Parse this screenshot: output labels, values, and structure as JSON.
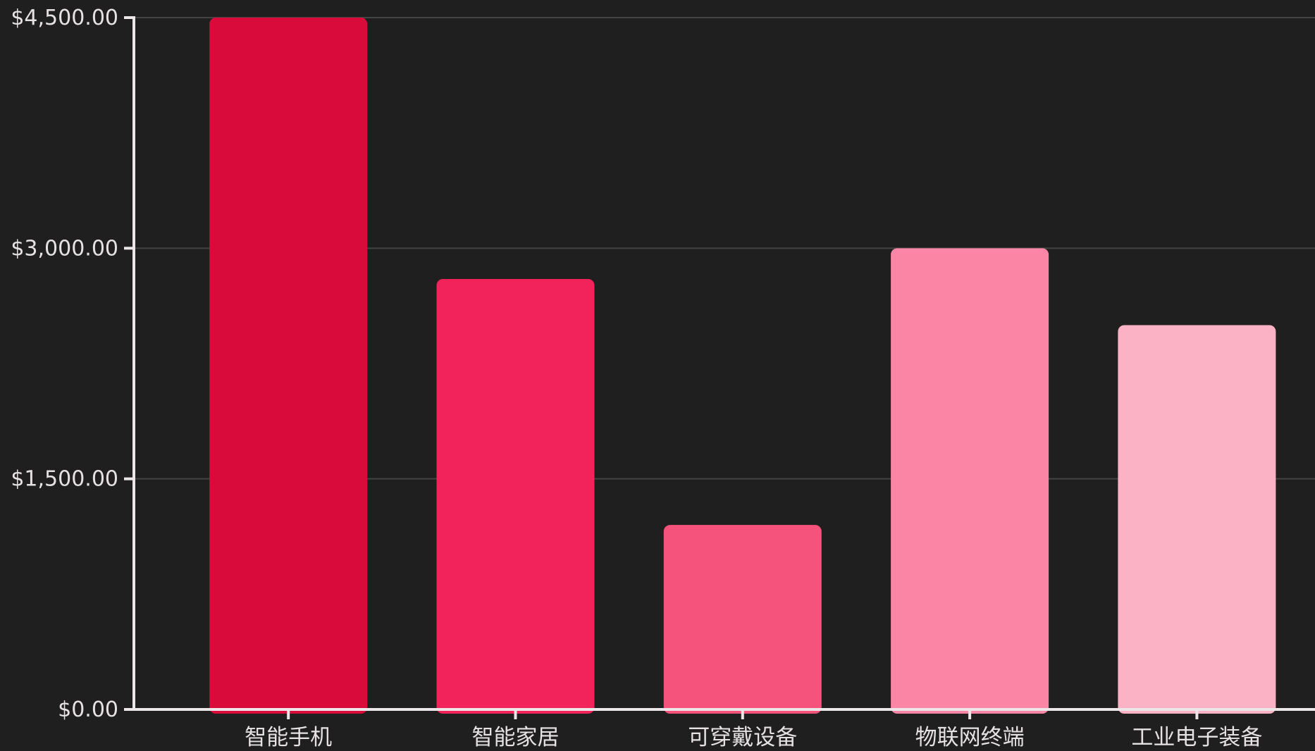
{
  "chart_data": {
    "type": "bar",
    "title": "",
    "xlabel": "",
    "ylabel": "",
    "categories": [
      "智能手机",
      "智能家居",
      "可穿戴设备",
      "物联网终端",
      "工业电子装备"
    ],
    "values": [
      4500,
      2800,
      1200,
      3000,
      2500
    ],
    "bar_colors": [
      "#d80b3b",
      "#f2235a",
      "#f5537c",
      "#fa85a5",
      "#fcb2c5"
    ],
    "ylim": [
      0,
      4500
    ],
    "yticks": [
      0,
      1500,
      3000,
      4500
    ],
    "ytick_labels": [
      "$0.00",
      "$1,500.00",
      "$3,000.00",
      "$4,500.00"
    ],
    "grid": true,
    "legend": "none"
  },
  "colors": {
    "background": "#1f1f1f",
    "axis": "#ece6e9",
    "grid": "#444444",
    "text": "#e6e2e4"
  }
}
